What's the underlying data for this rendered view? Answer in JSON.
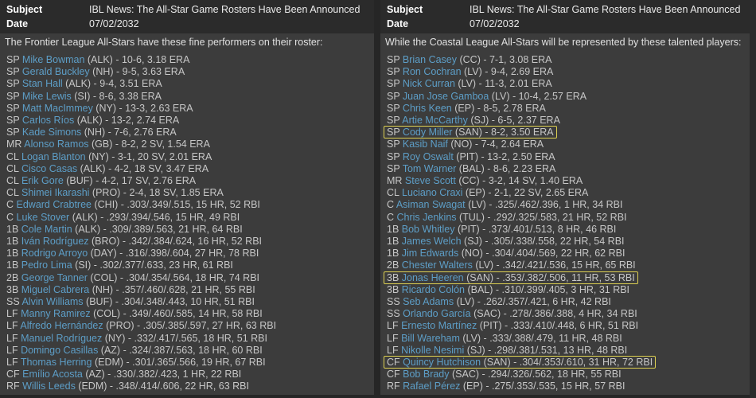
{
  "colors": {
    "player_link": "#5d9ec7",
    "highlight_border": "#ddd052",
    "header_bg": "#2b2b2b",
    "body_bg": "#3c3c3c"
  },
  "panels": [
    {
      "subject_label": "Subject",
      "subject": "IBL News: The All-Star Game Rosters Have Been Announced",
      "date_label": "Date",
      "date": "07/02/2032",
      "intro": "The Frontier League All-Stars have these fine performers on their roster:",
      "players": [
        {
          "pos": "SP",
          "name": "Mike Bowman",
          "team": "ALK",
          "stats": "10-6, 3.18 ERA",
          "highlight": false
        },
        {
          "pos": "SP",
          "name": "Gerald Buckley",
          "team": "NH",
          "stats": "9-5, 3.63 ERA",
          "highlight": false
        },
        {
          "pos": "SP",
          "name": "Stan Hall",
          "team": "ALK",
          "stats": "9-4, 3.51 ERA",
          "highlight": false
        },
        {
          "pos": "SP",
          "name": "Mike Lewis",
          "team": "SI",
          "stats": "8-6, 3.38 ERA",
          "highlight": false
        },
        {
          "pos": "SP",
          "name": "Matt MacImmey",
          "team": "NY",
          "stats": "13-3, 2.63 ERA",
          "highlight": false
        },
        {
          "pos": "SP",
          "name": "Carlos Ríos",
          "team": "ALK",
          "stats": "13-2, 2.74 ERA",
          "highlight": false
        },
        {
          "pos": "SP",
          "name": "Kade Simons",
          "team": "NH",
          "stats": "7-6, 2.76 ERA",
          "highlight": false
        },
        {
          "pos": "MR",
          "name": "Alonso Ramos",
          "team": "GB",
          "stats": "8-2, 2 SV, 1.54 ERA",
          "highlight": false
        },
        {
          "pos": "CL",
          "name": "Logan Blanton",
          "team": "NY",
          "stats": "3-1, 20 SV, 2.01 ERA",
          "highlight": false
        },
        {
          "pos": "CL",
          "name": "Cisco Casas",
          "team": "ALK",
          "stats": "4-2, 18 SV, 3.47 ERA",
          "highlight": false
        },
        {
          "pos": "CL",
          "name": "Erik Gore",
          "team": "BUF",
          "stats": "4-2, 17 SV, 2.76 ERA",
          "highlight": false
        },
        {
          "pos": "CL",
          "name": "Shimei Ikarashi",
          "team": "PRO",
          "stats": "2-4, 18 SV, 1.85 ERA",
          "highlight": false
        },
        {
          "pos": "C",
          "name": "Edward Crabtree",
          "team": "CHI",
          "stats": ".303/.349/.515, 15 HR, 52 RBI",
          "highlight": false
        },
        {
          "pos": "C",
          "name": "Luke Stover",
          "team": "ALK",
          "stats": ".293/.394/.546, 15 HR, 49 RBI",
          "highlight": false
        },
        {
          "pos": "1B",
          "name": "Cole Martin",
          "team": "ALK",
          "stats": ".309/.389/.563, 21 HR, 64 RBI",
          "highlight": false
        },
        {
          "pos": "1B",
          "name": "Iván Rodríguez",
          "team": "BRO",
          "stats": ".342/.384/.624, 16 HR, 52 RBI",
          "highlight": false
        },
        {
          "pos": "1B",
          "name": "Rodrigo Arroyo",
          "team": "DAY",
          "stats": ".316/.398/.604, 27 HR, 78 RBI",
          "highlight": false
        },
        {
          "pos": "1B",
          "name": "Pedro Lima",
          "team": "SI",
          "stats": ".302/.377/.633, 23 HR, 61 RBI",
          "highlight": false
        },
        {
          "pos": "2B",
          "name": "George Tanner",
          "team": "COL",
          "stats": ".304/.354/.564, 18 HR, 74 RBI",
          "highlight": false
        },
        {
          "pos": "3B",
          "name": "Miguel Cabrera",
          "team": "NH",
          "stats": ".357/.460/.628, 21 HR, 55 RBI",
          "highlight": false
        },
        {
          "pos": "SS",
          "name": "Alvin Williams",
          "team": "BUF",
          "stats": ".304/.348/.443, 10 HR, 51 RBI",
          "highlight": false
        },
        {
          "pos": "LF",
          "name": "Manny Ramirez",
          "team": "COL",
          "stats": ".349/.460/.585, 14 HR, 58 RBI",
          "highlight": false
        },
        {
          "pos": "LF",
          "name": "Alfredo Hernández",
          "team": "PRO",
          "stats": ".305/.385/.597, 27 HR, 63 RBI",
          "highlight": false
        },
        {
          "pos": "LF",
          "name": "Manuel Rodríguez",
          "team": "NY",
          "stats": ".332/.417/.565, 18 HR, 51 RBI",
          "highlight": false
        },
        {
          "pos": "LF",
          "name": "Domingo Casillas",
          "team": "AZ",
          "stats": ".324/.387/.563, 18 HR, 60 RBI",
          "highlight": false
        },
        {
          "pos": "LF",
          "name": "Thomas Herring",
          "team": "EDM",
          "stats": ".301/.365/.566, 19 HR, 67 RBI",
          "highlight": false
        },
        {
          "pos": "CF",
          "name": "Emílio Acosta",
          "team": "AZ",
          "stats": ".330/.382/.423, 1 HR, 22 RBI",
          "highlight": false
        },
        {
          "pos": "RF",
          "name": "Willis Leeds",
          "team": "EDM",
          "stats": ".348/.414/.606, 22 HR, 63 RBI",
          "highlight": false
        }
      ]
    },
    {
      "subject_label": "Subject",
      "subject": "IBL News: The All-Star Game Rosters Have Been Announced",
      "date_label": "Date",
      "date": "07/02/2032",
      "intro": "While the Coastal League All-Stars will be represented by these talented players:",
      "players": [
        {
          "pos": "SP",
          "name": "Brian Casey",
          "team": "CC",
          "stats": "7-1, 3.08 ERA",
          "highlight": false
        },
        {
          "pos": "SP",
          "name": "Ron Cochran",
          "team": "LV",
          "stats": "9-4, 2.69 ERA",
          "highlight": false
        },
        {
          "pos": "SP",
          "name": "Nick Curran",
          "team": "LV",
          "stats": "11-3, 2.01 ERA",
          "highlight": false
        },
        {
          "pos": "SP",
          "name": "Juan Jose Gamboa",
          "team": "LV",
          "stats": "10-4, 2.57 ERA",
          "highlight": false
        },
        {
          "pos": "SP",
          "name": "Chris Keen",
          "team": "EP",
          "stats": "8-5, 2.78 ERA",
          "highlight": false
        },
        {
          "pos": "SP",
          "name": "Artie McCarthy",
          "team": "SJ",
          "stats": "6-5, 2.37 ERA",
          "highlight": false
        },
        {
          "pos": "SP",
          "name": "Cody Miller",
          "team": "SAN",
          "stats": "8-2, 3.50 ERA",
          "highlight": true
        },
        {
          "pos": "SP",
          "name": "Kasib Naif",
          "team": "NO",
          "stats": "7-4, 2.64 ERA",
          "highlight": false
        },
        {
          "pos": "SP",
          "name": "Roy Oswalt",
          "team": "PIT",
          "stats": "13-2, 2.50 ERA",
          "highlight": false
        },
        {
          "pos": "SP",
          "name": "Tom Warner",
          "team": "BAL",
          "stats": "8-6, 2.23 ERA",
          "highlight": false
        },
        {
          "pos": "MR",
          "name": "Steve Scott",
          "team": "CC",
          "stats": "3-2, 14 SV, 1.40 ERA",
          "highlight": false
        },
        {
          "pos": "CL",
          "name": "Luciano Craxi",
          "team": "EP",
          "stats": "2-1, 22 SV, 2.65 ERA",
          "highlight": false
        },
        {
          "pos": "C",
          "name": "Asiman Swagat",
          "team": "LV",
          "stats": ".325/.462/.396, 1 HR, 34 RBI",
          "highlight": false
        },
        {
          "pos": "C",
          "name": "Chris Jenkins",
          "team": "TUL",
          "stats": ".292/.325/.583, 21 HR, 52 RBI",
          "highlight": false
        },
        {
          "pos": "1B",
          "name": "Bob Whitley",
          "team": "PIT",
          "stats": ".373/.401/.513, 8 HR, 46 RBI",
          "highlight": false
        },
        {
          "pos": "1B",
          "name": "James Welch",
          "team": "SJ",
          "stats": ".305/.338/.558, 22 HR, 54 RBI",
          "highlight": false
        },
        {
          "pos": "1B",
          "name": "Jim Edwards",
          "team": "NO",
          "stats": ".304/.404/.569, 22 HR, 62 RBI",
          "highlight": false
        },
        {
          "pos": "2B",
          "name": "Chester Walters",
          "team": "LV",
          "stats": ".342/.421/.536, 15 HR, 65 RBI",
          "highlight": false
        },
        {
          "pos": "3B",
          "name": "Jonas Heeren",
          "team": "SAN",
          "stats": ".353/.382/.506, 11 HR, 53 RBI",
          "highlight": true
        },
        {
          "pos": "3B",
          "name": "Ricardo Colón",
          "team": "BAL",
          "stats": ".310/.399/.405, 3 HR, 31 RBI",
          "highlight": false
        },
        {
          "pos": "SS",
          "name": "Seb Adams",
          "team": "LV",
          "stats": ".262/.357/.421, 6 HR, 42 RBI",
          "highlight": false
        },
        {
          "pos": "SS",
          "name": "Orlando García",
          "team": "SAC",
          "stats": ".278/.386/.388, 4 HR, 34 RBI",
          "highlight": false
        },
        {
          "pos": "LF",
          "name": "Ernesto Martínez",
          "team": "PIT",
          "stats": ".333/.410/.448, 6 HR, 51 RBI",
          "highlight": false
        },
        {
          "pos": "LF",
          "name": "Bill Wareham",
          "team": "LV",
          "stats": ".333/.388/.479, 11 HR, 48 RBI",
          "highlight": false
        },
        {
          "pos": "LF",
          "name": "Nikolle Nesimi",
          "team": "SJ",
          "stats": ".298/.381/.531, 13 HR, 48 RBI",
          "highlight": false
        },
        {
          "pos": "CF",
          "name": "Quincy Hutchison",
          "team": "SAN",
          "stats": ".304/.353/.610, 31 HR, 72 RBI",
          "highlight": true
        },
        {
          "pos": "CF",
          "name": "Bob Brady",
          "team": "SAC",
          "stats": ".294/.326/.562, 18 HR, 55 RBI",
          "highlight": false
        },
        {
          "pos": "RF",
          "name": "Rafael Pérez",
          "team": "EP",
          "stats": ".275/.353/.535, 15 HR, 57 RBI",
          "highlight": false
        }
      ]
    }
  ]
}
